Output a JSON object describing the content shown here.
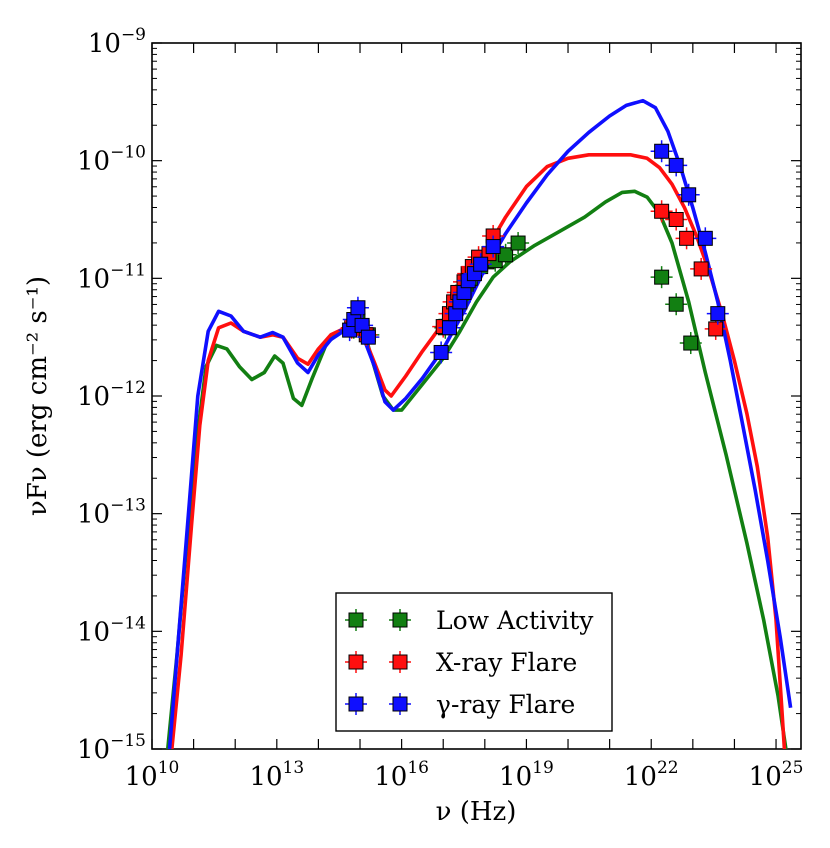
{
  "chart_data": {
    "type": "line",
    "title": "",
    "xlabel": "ν (Hz)",
    "ylabel": "νFν (erg cm⁻² s⁻¹)",
    "xscale": "log",
    "yscale": "log",
    "xlim_log10": [
      10,
      25.6
    ],
    "ylim_log10": [
      -15,
      -9
    ],
    "x_ticks": [
      {
        "base": "10",
        "exp": "10",
        "log10": 10
      },
      {
        "base": "10",
        "exp": "13",
        "log10": 13
      },
      {
        "base": "10",
        "exp": "16",
        "log10": 16
      },
      {
        "base": "10",
        "exp": "19",
        "log10": 19
      },
      {
        "base": "10",
        "exp": "22",
        "log10": 22
      },
      {
        "base": "10",
        "exp": "25",
        "log10": 25
      }
    ],
    "y_ticks": [
      {
        "base": "10",
        "exp": "−9",
        "log10": -9
      },
      {
        "base": "10",
        "exp": "−10",
        "log10": -10
      },
      {
        "base": "10",
        "exp": "−11",
        "log10": -11
      },
      {
        "base": "10",
        "exp": "−12",
        "log10": -12
      },
      {
        "base": "10",
        "exp": "−13",
        "log10": -13
      },
      {
        "base": "10",
        "exp": "−14",
        "log10": -14
      },
      {
        "base": "10",
        "exp": "−15",
        "log10": -15
      }
    ],
    "legend_position": "lower-center",
    "series": [
      {
        "name": "Low Activity",
        "color": "#127f12",
        "model_log": [
          [
            10.35,
            -15.1
          ],
          [
            10.6,
            -14.2
          ],
          [
            10.9,
            -13.0
          ],
          [
            11.1,
            -12.3
          ],
          [
            11.3,
            -11.75
          ],
          [
            11.55,
            -11.57
          ],
          [
            11.8,
            -11.6
          ],
          [
            12.1,
            -11.75
          ],
          [
            12.4,
            -11.86
          ],
          [
            12.7,
            -11.8
          ],
          [
            12.95,
            -11.66
          ],
          [
            13.15,
            -11.72
          ],
          [
            13.4,
            -12.02
          ],
          [
            13.6,
            -12.08
          ],
          [
            13.85,
            -11.85
          ],
          [
            14.2,
            -11.55
          ],
          [
            14.6,
            -11.43
          ],
          [
            14.9,
            -11.44
          ],
          [
            15.15,
            -11.52
          ],
          [
            15.3,
            -11.7
          ],
          [
            15.55,
            -12.0
          ],
          [
            15.8,
            -12.12
          ],
          [
            16.0,
            -12.12
          ],
          [
            16.5,
            -11.9
          ],
          [
            17.0,
            -11.68
          ],
          [
            17.4,
            -11.45
          ],
          [
            17.8,
            -11.2
          ],
          [
            18.2,
            -10.99
          ],
          [
            18.6,
            -10.86
          ],
          [
            19.2,
            -10.72
          ],
          [
            19.8,
            -10.6
          ],
          [
            20.4,
            -10.48
          ],
          [
            20.9,
            -10.35
          ],
          [
            21.3,
            -10.27
          ],
          [
            21.6,
            -10.26
          ],
          [
            21.9,
            -10.31
          ],
          [
            22.2,
            -10.45
          ],
          [
            22.5,
            -10.7
          ],
          [
            22.9,
            -11.2
          ],
          [
            23.3,
            -11.8
          ],
          [
            23.8,
            -12.5
          ],
          [
            24.3,
            -13.25
          ],
          [
            24.7,
            -13.9
          ],
          [
            25.05,
            -14.55
          ],
          [
            25.3,
            -15.15
          ]
        ],
        "points_log": [
          [
            14.85,
            -11.42
          ],
          [
            14.95,
            -11.36
          ],
          [
            15.05,
            -11.42
          ],
          [
            15.2,
            -11.48
          ],
          [
            17.05,
            -11.42
          ],
          [
            17.15,
            -11.35
          ],
          [
            17.25,
            -11.26
          ],
          [
            17.35,
            -11.19
          ],
          [
            17.45,
            -11.12
          ],
          [
            17.55,
            -11.06
          ],
          [
            17.65,
            -11.0
          ],
          [
            17.75,
            -10.95
          ],
          [
            17.9,
            -10.9
          ],
          [
            18.05,
            -10.86
          ],
          [
            18.25,
            -10.85
          ],
          [
            18.5,
            -10.8
          ],
          [
            18.8,
            -10.7
          ],
          [
            22.25,
            -10.99
          ],
          [
            22.6,
            -11.22
          ],
          [
            22.95,
            -11.55
          ]
        ]
      },
      {
        "name": "X-ray Flare",
        "color": "#ff0f0f",
        "model_log": [
          [
            10.45,
            -15.1
          ],
          [
            10.7,
            -14.2
          ],
          [
            10.95,
            -13.1
          ],
          [
            11.15,
            -12.25
          ],
          [
            11.35,
            -11.7
          ],
          [
            11.6,
            -11.42
          ],
          [
            11.9,
            -11.38
          ],
          [
            12.2,
            -11.45
          ],
          [
            12.6,
            -11.5
          ],
          [
            12.9,
            -11.48
          ],
          [
            13.15,
            -11.5
          ],
          [
            13.5,
            -11.68
          ],
          [
            13.75,
            -11.73
          ],
          [
            14.0,
            -11.6
          ],
          [
            14.3,
            -11.48
          ],
          [
            14.6,
            -11.43
          ],
          [
            14.85,
            -11.42
          ],
          [
            15.1,
            -11.5
          ],
          [
            15.35,
            -11.72
          ],
          [
            15.6,
            -11.95
          ],
          [
            15.75,
            -12.0
          ],
          [
            16.1,
            -11.83
          ],
          [
            16.5,
            -11.62
          ],
          [
            17.0,
            -11.38
          ],
          [
            17.5,
            -11.08
          ],
          [
            18.0,
            -10.78
          ],
          [
            18.5,
            -10.48
          ],
          [
            19.0,
            -10.22
          ],
          [
            19.5,
            -10.05
          ],
          [
            20.0,
            -9.98
          ],
          [
            20.5,
            -9.95
          ],
          [
            21.0,
            -9.95
          ],
          [
            21.5,
            -9.95
          ],
          [
            21.9,
            -9.98
          ],
          [
            22.2,
            -10.06
          ],
          [
            22.5,
            -10.2
          ],
          [
            22.8,
            -10.4
          ],
          [
            23.1,
            -10.65
          ],
          [
            23.4,
            -10.95
          ],
          [
            23.7,
            -11.3
          ],
          [
            24.0,
            -11.7
          ],
          [
            24.3,
            -12.15
          ],
          [
            24.55,
            -12.6
          ],
          [
            24.8,
            -13.2
          ],
          [
            25.0,
            -13.9
          ],
          [
            25.12,
            -14.55
          ],
          [
            25.2,
            -15.0
          ]
        ],
        "points_log": [
          [
            14.8,
            -11.42
          ],
          [
            14.9,
            -11.36
          ],
          [
            15.05,
            -11.42
          ],
          [
            15.15,
            -11.48
          ],
          [
            17.0,
            -11.41
          ],
          [
            17.15,
            -11.3
          ],
          [
            17.25,
            -11.2
          ],
          [
            17.35,
            -11.12
          ],
          [
            17.5,
            -11.03
          ],
          [
            17.6,
            -10.96
          ],
          [
            17.7,
            -10.9
          ],
          [
            17.85,
            -10.82
          ],
          [
            18.1,
            -10.79
          ],
          [
            18.2,
            -10.64
          ],
          [
            22.25,
            -10.43
          ],
          [
            22.6,
            -10.5
          ],
          [
            22.85,
            -10.66
          ],
          [
            23.2,
            -10.92
          ],
          [
            23.55,
            -11.43
          ]
        ]
      },
      {
        "name": "γ-ray Flare",
        "color": "#0f0fff",
        "model_log": [
          [
            10.4,
            -15.1
          ],
          [
            10.65,
            -14.0
          ],
          [
            10.9,
            -12.9
          ],
          [
            11.1,
            -12.0
          ],
          [
            11.35,
            -11.45
          ],
          [
            11.6,
            -11.28
          ],
          [
            11.9,
            -11.32
          ],
          [
            12.2,
            -11.45
          ],
          [
            12.6,
            -11.5
          ],
          [
            12.9,
            -11.46
          ],
          [
            13.15,
            -11.5
          ],
          [
            13.5,
            -11.72
          ],
          [
            13.75,
            -11.8
          ],
          [
            14.0,
            -11.65
          ],
          [
            14.3,
            -11.52
          ],
          [
            14.6,
            -11.45
          ],
          [
            14.85,
            -11.44
          ],
          [
            15.1,
            -11.52
          ],
          [
            15.35,
            -11.75
          ],
          [
            15.6,
            -12.05
          ],
          [
            15.8,
            -12.12
          ],
          [
            16.1,
            -12.02
          ],
          [
            16.5,
            -11.85
          ],
          [
            17.0,
            -11.6
          ],
          [
            17.5,
            -11.28
          ],
          [
            18.0,
            -10.92
          ],
          [
            18.5,
            -10.62
          ],
          [
            19.0,
            -10.36
          ],
          [
            19.5,
            -10.12
          ],
          [
            20.0,
            -9.92
          ],
          [
            20.5,
            -9.76
          ],
          [
            21.0,
            -9.62
          ],
          [
            21.4,
            -9.53
          ],
          [
            21.8,
            -9.49
          ],
          [
            22.1,
            -9.55
          ],
          [
            22.4,
            -9.75
          ],
          [
            22.7,
            -10.05
          ],
          [
            23.0,
            -10.4
          ],
          [
            23.3,
            -10.78
          ],
          [
            23.6,
            -11.2
          ],
          [
            23.9,
            -11.7
          ],
          [
            24.2,
            -12.25
          ],
          [
            24.5,
            -12.8
          ],
          [
            24.8,
            -13.4
          ],
          [
            25.1,
            -14.05
          ],
          [
            25.35,
            -14.65
          ]
        ],
        "points_log": [
          [
            14.75,
            -11.44
          ],
          [
            14.85,
            -11.35
          ],
          [
            14.95,
            -11.25
          ],
          [
            15.05,
            -11.4
          ],
          [
            15.2,
            -11.5
          ],
          [
            16.95,
            -11.63
          ],
          [
            17.15,
            -11.42
          ],
          [
            17.3,
            -11.3
          ],
          [
            17.4,
            -11.2
          ],
          [
            17.5,
            -11.12
          ],
          [
            17.6,
            -11.02
          ],
          [
            17.75,
            -10.96
          ],
          [
            17.9,
            -10.88
          ],
          [
            18.2,
            -10.73
          ],
          [
            22.25,
            -9.92
          ],
          [
            22.6,
            -10.04
          ],
          [
            22.9,
            -10.29
          ],
          [
            23.3,
            -10.66
          ],
          [
            23.6,
            -11.3
          ]
        ]
      }
    ]
  }
}
